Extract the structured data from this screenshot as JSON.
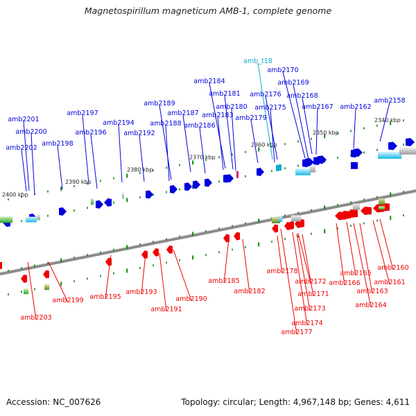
{
  "title": "Magnetospirillum magneticum AMB-1, complete genome",
  "footer": {
    "accession": "Accession: NC_007626",
    "summary": "Topology: circular; Length: 4,967,148 bp; Genes: 4,611"
  },
  "colors": {
    "plus_strand": "#0000dd",
    "minus_strand": "#ee0000",
    "rna_gene": "#11aacc",
    "backbone": "#8a8a8a",
    "tick": "#118811"
  },
  "scale_labels": [
    "2400 kbp",
    "2390 kbp",
    "2380 kbp",
    "2370 kbp",
    "2360 kbp",
    "2350 kbp",
    "2340 kbp"
  ],
  "plus_strand_labels": [
    "amb_t18",
    "amb2170",
    "amb2169",
    "amb2168",
    "amb2167",
    "amb2162",
    "amb2158",
    "amb2184",
    "amb2181",
    "amb2176",
    "amb2175",
    "amb2180",
    "amb2179",
    "amb2183",
    "amb2189",
    "amb2187",
    "amb2186",
    "amb2188",
    "amb2197",
    "amb2194",
    "amb2196",
    "amb2192",
    "amb2201",
    "amb2200",
    "amb2202",
    "amb2198"
  ],
  "minus_strand_labels": [
    "amb2203",
    "amb2199",
    "amb2195",
    "amb2193",
    "amb2191",
    "amb2190",
    "amb2185",
    "amb2182",
    "amb2178",
    "amb2172",
    "amb2171",
    "amb2173",
    "amb2174",
    "amb2177",
    "amb2166",
    "amb2165",
    "amb2163",
    "amb2164",
    "amb2161",
    "amb2160"
  ]
}
